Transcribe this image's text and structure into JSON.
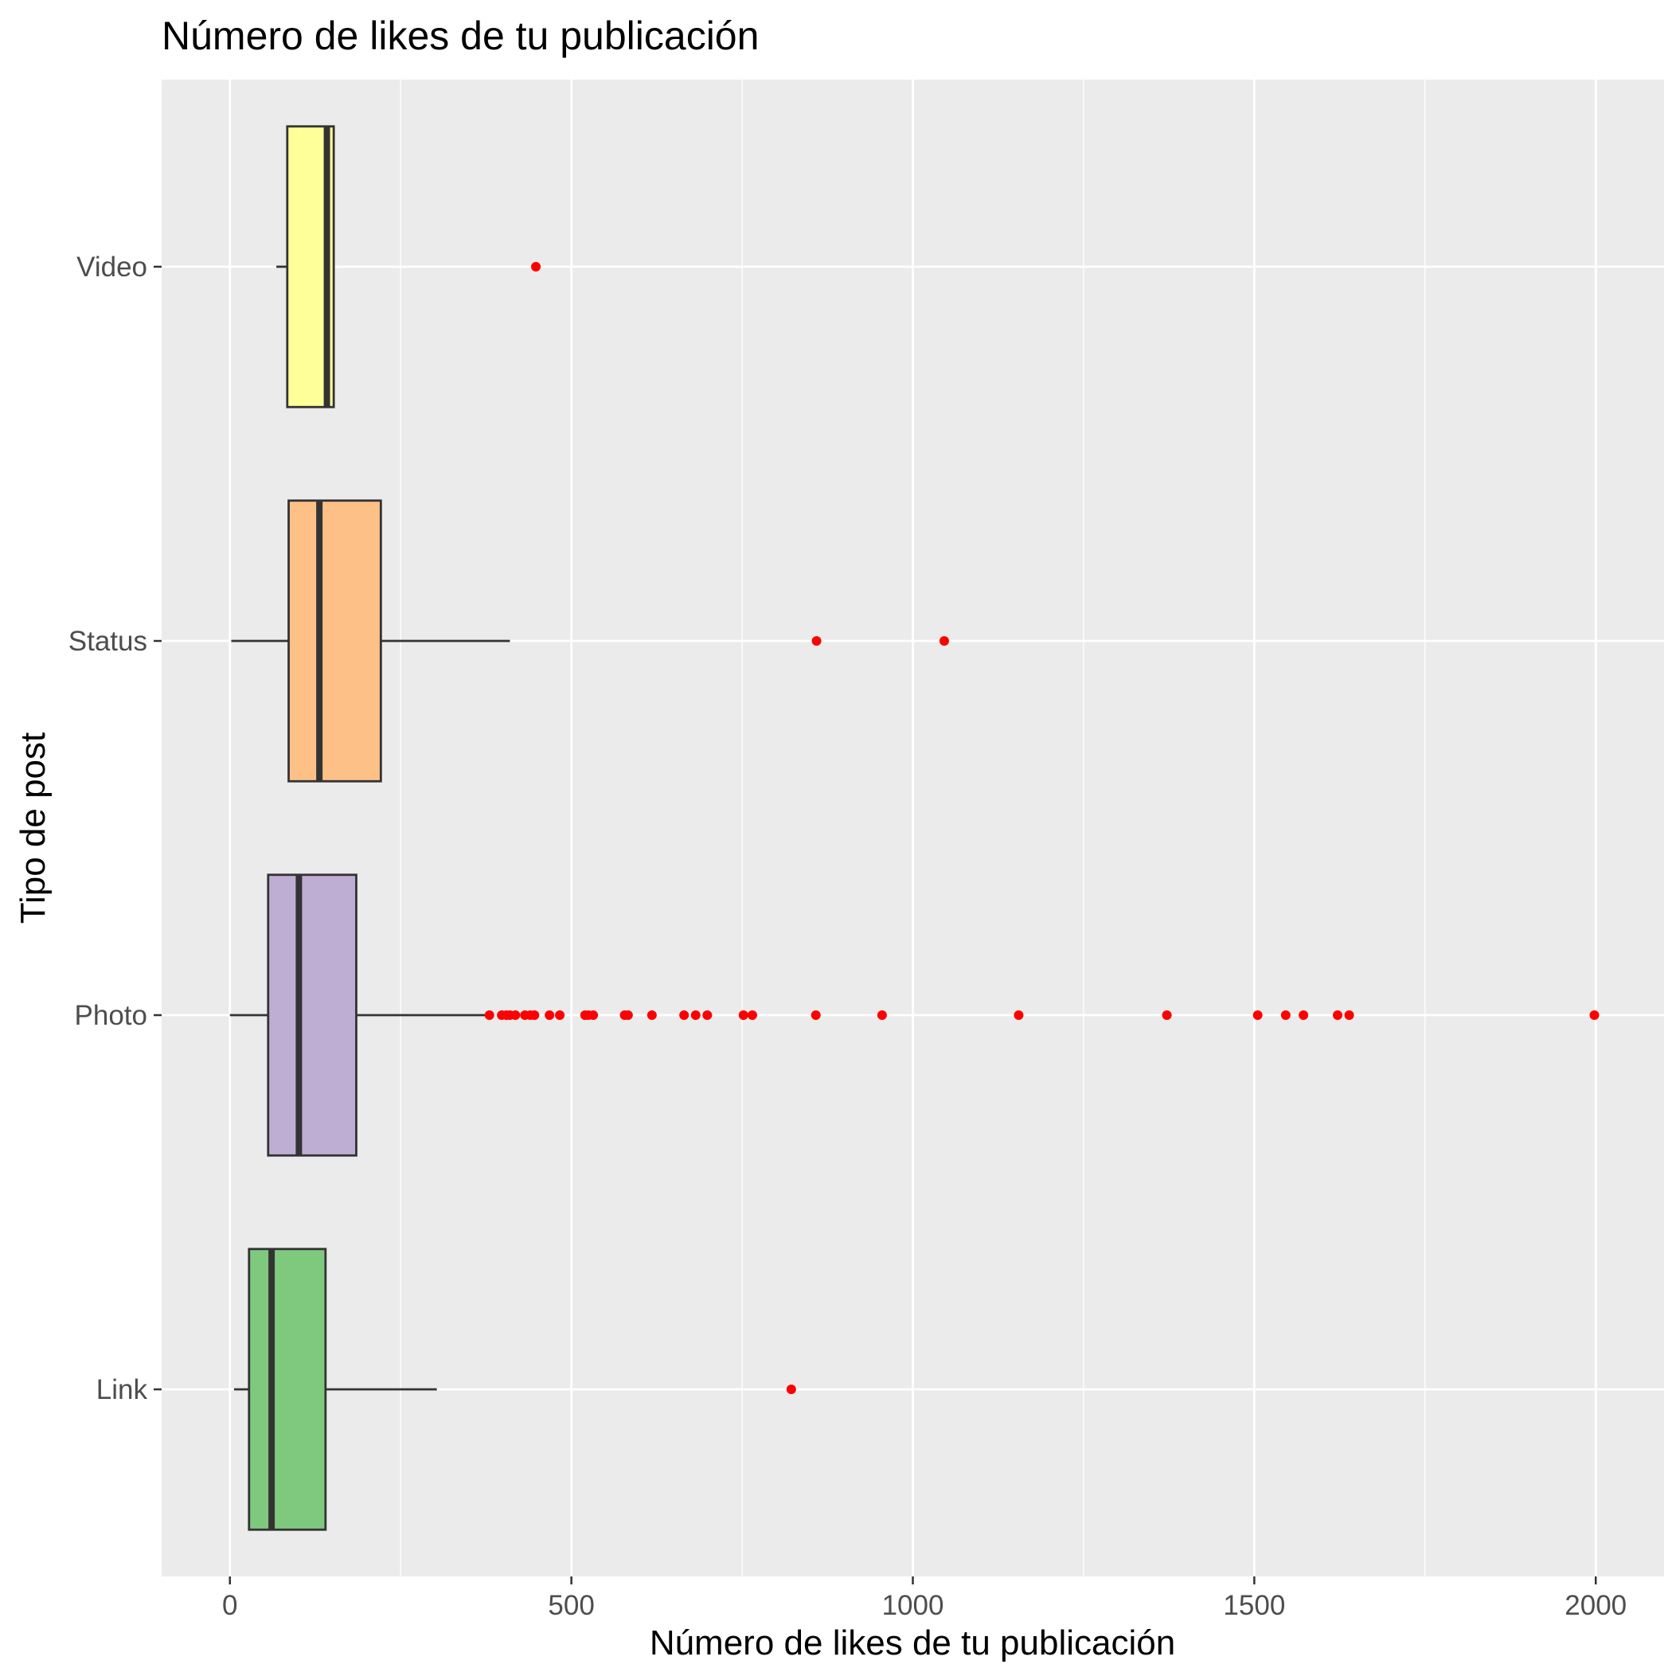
{
  "chart_data": {
    "type": "boxplot",
    "orientation": "horizontal",
    "title": "Número de likes de tu publicación",
    "xlabel": "Número de likes de tu publicación",
    "ylabel": "Tipo de post",
    "xlim": [
      -100,
      2100
    ],
    "x_ticks": [
      0,
      500,
      1000,
      1500,
      2000
    ],
    "x_tick_labels": [
      "0",
      "500",
      "1000",
      "1500",
      "2000"
    ],
    "grid": true,
    "background": "#ebebeb",
    "outlier_color": "#ff0000",
    "box_outline_color": "#333333",
    "categories": [
      "Link",
      "Photo",
      "Status",
      "Video"
    ],
    "series": [
      {
        "category": "Link",
        "fill": "#7fc97f",
        "whisker_low": 6,
        "q1": 28,
        "median": 61,
        "q3": 140,
        "whisker_high": 303,
        "outliers": [
          822
        ]
      },
      {
        "category": "Photo",
        "fill": "#beaed4",
        "whisker_low": 0,
        "q1": 56,
        "median": 101,
        "q3": 185,
        "whisker_high": 375,
        "outliers": [
          380,
          398,
          405,
          410,
          418,
          432,
          440,
          446,
          468,
          483,
          520,
          525,
          532,
          578,
          583,
          618,
          665,
          682,
          699,
          752,
          765,
          858,
          955,
          1155,
          1372,
          1505,
          1546,
          1572,
          1622,
          1639,
          1998
        ]
      },
      {
        "category": "Status",
        "fill": "#fdc086",
        "whisker_low": 2,
        "q1": 86,
        "median": 131,
        "q3": 221,
        "whisker_high": 410,
        "outliers": [
          859,
          1046
        ]
      },
      {
        "category": "Video",
        "fill": "#ffff99",
        "whisker_low": 68,
        "q1": 84,
        "median": 142,
        "q3": 152,
        "whisker_high": 152,
        "outliers": [
          448
        ]
      }
    ]
  }
}
